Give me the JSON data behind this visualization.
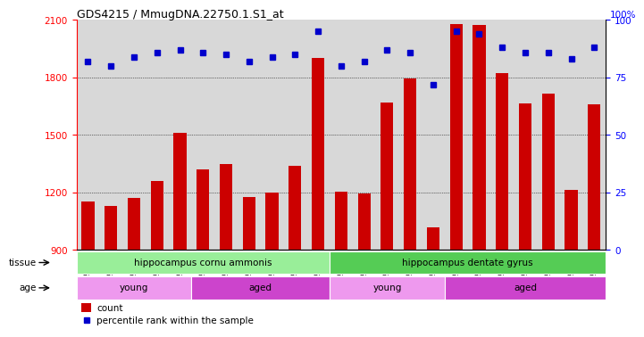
{
  "title": "GDS4215 / MmugDNA.22750.1.S1_at",
  "samples": [
    "GSM297138",
    "GSM297139",
    "GSM297140",
    "GSM297141",
    "GSM297142",
    "GSM297143",
    "GSM297144",
    "GSM297145",
    "GSM297146",
    "GSM297147",
    "GSM297148",
    "GSM297149",
    "GSM297150",
    "GSM297151",
    "GSM297152",
    "GSM297153",
    "GSM297154",
    "GSM297155",
    "GSM297156",
    "GSM297157",
    "GSM297158",
    "GSM297159",
    "GSM297160"
  ],
  "counts": [
    1155,
    1130,
    1170,
    1260,
    1510,
    1320,
    1350,
    1175,
    1200,
    1340,
    1900,
    1205,
    1195,
    1670,
    1795,
    1020,
    2080,
    2075,
    1825,
    1665,
    1715,
    1215,
    1660
  ],
  "percentiles": [
    82,
    80,
    84,
    86,
    87,
    86,
    85,
    82,
    84,
    85,
    95,
    80,
    82,
    87,
    86,
    72,
    95,
    94,
    88,
    86,
    86,
    83,
    88
  ],
  "ylim_left": [
    900,
    2100
  ],
  "ylim_right": [
    0,
    100
  ],
  "yticks_left": [
    900,
    1200,
    1500,
    1800,
    2100
  ],
  "yticks_right": [
    0,
    25,
    50,
    75,
    100
  ],
  "bar_color": "#cc0000",
  "dot_color": "#0000cc",
  "tissue_groups": [
    {
      "label": "hippocampus cornu ammonis",
      "start": 0,
      "end": 11,
      "color": "#99ee99"
    },
    {
      "label": "hippocampus dentate gyrus",
      "start": 11,
      "end": 23,
      "color": "#55cc55"
    }
  ],
  "age_groups": [
    {
      "label": "young",
      "start": 0,
      "end": 5,
      "color": "#ee99ee"
    },
    {
      "label": "aged",
      "start": 5,
      "end": 11,
      "color": "#cc44cc"
    },
    {
      "label": "young",
      "start": 11,
      "end": 16,
      "color": "#ee99ee"
    },
    {
      "label": "aged",
      "start": 16,
      "end": 23,
      "color": "#cc44cc"
    }
  ],
  "bg_color": "#d8d8d8",
  "plot_bg": "#d8d8d8",
  "grid_lines": [
    1200,
    1500,
    1800
  ]
}
